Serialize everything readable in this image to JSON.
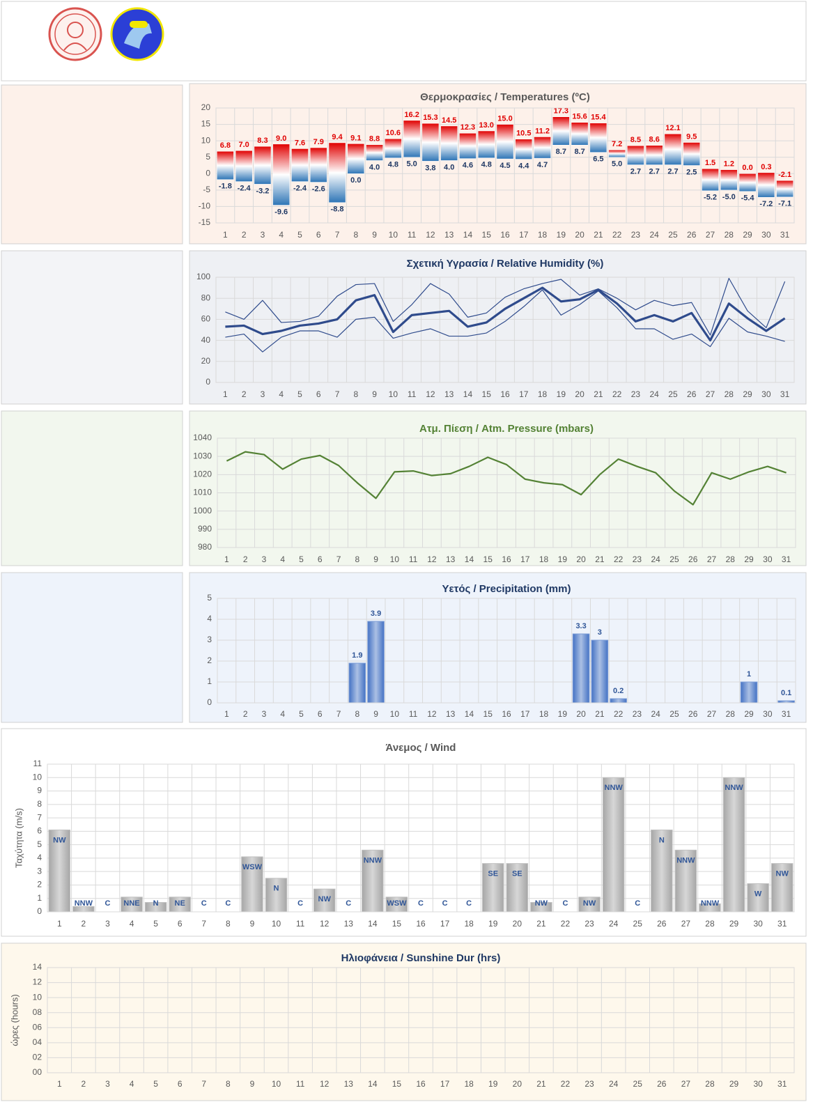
{
  "chart_data": [
    {
      "type": "range_bar",
      "title": "Θερμοκρασίες / Temperatures (ºC)",
      "title_color": "#595959",
      "categories": [
        1,
        2,
        3,
        4,
        5,
        6,
        7,
        8,
        9,
        10,
        11,
        12,
        13,
        14,
        15,
        16,
        17,
        18,
        19,
        20,
        21,
        22,
        23,
        24,
        25,
        26,
        27,
        28,
        29,
        30,
        31
      ],
      "series": [
        {
          "color": "#e00000",
          "values": [
            6.8,
            7.0,
            8.3,
            9.0,
            7.6,
            7.9,
            9.4,
            9.1,
            8.8,
            10.6,
            16.2,
            15.3,
            14.5,
            12.3,
            13.0,
            15.0,
            10.5,
            11.2,
            17.3,
            15.6,
            15.4,
            7.2,
            8.5,
            8.6,
            12.1,
            9.5,
            1.5,
            1.2,
            0.0,
            0.3,
            -2.1
          ],
          "value_labels": [
            "6.8",
            "7.0",
            "8.3",
            "9.0",
            "7.6",
            "7.9",
            "9.4",
            "9.1",
            "8.8",
            "10.6",
            "16.2",
            "15.3",
            "14.5",
            "12.3",
            "13.0",
            "15.0",
            "10.5",
            "11.2",
            "17.3",
            "15.6",
            "15.4",
            "7.2",
            "8.5",
            "8.6",
            "12.1",
            "9.5",
            "1.5",
            "1.2",
            "0.0",
            "0.3",
            "-2.1"
          ]
        },
        {
          "color": "#2e75b6",
          "values": [
            -1.8,
            -2.4,
            -3.2,
            -9.6,
            -2.4,
            -2.6,
            -8.8,
            0.0,
            4.0,
            4.8,
            5.0,
            3.8,
            4.0,
            4.6,
            4.8,
            4.5,
            4.4,
            4.7,
            8.7,
            8.7,
            6.5,
            5.0,
            2.7,
            2.7,
            2.7,
            2.5,
            -5.2,
            -5.0,
            -5.4,
            -7.2,
            -7.1
          ],
          "value_labels": [
            "-1.8",
            "-2.4",
            "-3.2",
            "-9.6",
            "-2.4",
            "-2.6",
            "-8.8",
            "0.0",
            "4.0",
            "4.8",
            "5.0",
            "3.8",
            "4.0",
            "4.6",
            "4.8",
            "4.5",
            "4.4",
            "4.7",
            "8.7",
            "8.7",
            "6.5",
            "5.0",
            "2.7",
            "2.7",
            "2.7",
            "2.5",
            "-5.2",
            "-5.0",
            "-5.4",
            "-7.2",
            "-7.1"
          ]
        }
      ],
      "ylim": [
        -15,
        20
      ],
      "yticks": [
        -15,
        -10,
        -5,
        0,
        5,
        10,
        15,
        20
      ],
      "grid": true
    },
    {
      "type": "line",
      "title": "Σχετική Υγρασία / Relative Humidity (%)",
      "title_color": "#1f3864",
      "categories": [
        1,
        2,
        3,
        4,
        5,
        6,
        7,
        8,
        9,
        10,
        11,
        12,
        13,
        14,
        15,
        16,
        17,
        18,
        19,
        20,
        21,
        22,
        23,
        24,
        25,
        26,
        27,
        28,
        29,
        30,
        31
      ],
      "series": [
        {
          "color": "#2f4b8c",
          "linewidth": 1.2,
          "values": [
            67,
            60,
            78,
            57,
            58,
            63,
            82,
            93,
            94,
            58,
            74,
            94,
            84,
            62,
            66,
            81,
            89,
            94,
            98,
            83,
            89,
            80,
            69,
            78,
            73,
            76,
            45,
            99,
            68,
            52,
            96
          ]
        },
        {
          "color": "#2f4b8c",
          "linewidth": 3.2,
          "values": [
            53,
            54,
            46,
            49,
            54,
            56,
            60,
            78,
            83,
            48,
            64,
            66,
            68,
            53,
            57,
            70,
            80,
            90,
            77,
            79,
            88,
            75,
            58,
            64,
            58,
            66,
            40,
            75,
            61,
            49,
            61
          ]
        },
        {
          "color": "#2f4b8c",
          "linewidth": 1.2,
          "values": [
            43,
            46,
            29,
            43,
            49,
            49,
            43,
            60,
            62,
            42,
            47,
            51,
            44,
            44,
            47,
            58,
            72,
            88,
            64,
            74,
            87,
            71,
            51,
            51,
            41,
            46,
            34,
            61,
            48,
            44,
            39
          ]
        }
      ],
      "ylim": [
        0,
        100
      ],
      "yticks": [
        0,
        20,
        40,
        60,
        80,
        100
      ],
      "grid": true
    },
    {
      "type": "line",
      "title": "Ατμ. Πίεση / Atm. Pressure (mbars)",
      "title_color": "#548235",
      "categories": [
        1,
        2,
        3,
        4,
        5,
        6,
        7,
        8,
        9,
        10,
        11,
        12,
        13,
        14,
        15,
        16,
        17,
        18,
        19,
        20,
        21,
        22,
        23,
        24,
        25,
        26,
        27,
        28,
        29,
        30,
        31
      ],
      "series": [
        {
          "color": "#548235",
          "linewidth": 2.2,
          "values": [
            1027.5,
            1032.5,
            1031,
            1023,
            1028.5,
            1030.5,
            1025,
            1015.5,
            1007,
            1021.5,
            1022,
            1019.5,
            1020.5,
            1024.5,
            1029.5,
            1025.5,
            1017.5,
            1015.5,
            1014.5,
            1009,
            1020,
            1028.5,
            1024.5,
            1021,
            1011,
            1003.5,
            1021,
            1017.5,
            1021.5,
            1024.5,
            1021
          ]
        }
      ],
      "ylim": [
        980,
        1040
      ],
      "yticks": [
        980,
        990,
        1000,
        1010,
        1020,
        1030,
        1040
      ],
      "grid": true
    },
    {
      "type": "bar",
      "title": "Υετός / Precipitation (mm)",
      "title_color": "#1f3864",
      "categories": [
        1,
        2,
        3,
        4,
        5,
        6,
        7,
        8,
        9,
        10,
        11,
        12,
        13,
        14,
        15,
        16,
        17,
        18,
        19,
        20,
        21,
        22,
        23,
        24,
        25,
        26,
        27,
        28,
        29,
        30,
        31
      ],
      "series": [
        {
          "color": "#4472c4",
          "values": [
            null,
            null,
            null,
            null,
            null,
            null,
            null,
            1.9,
            3.9,
            null,
            null,
            null,
            null,
            null,
            null,
            null,
            null,
            null,
            null,
            3.3,
            3,
            0.2,
            null,
            null,
            null,
            null,
            null,
            null,
            1,
            null,
            0.1
          ]
        }
      ],
      "data_labels": true,
      "ylim": [
        0,
        5
      ],
      "yticks": [
        0,
        1,
        2,
        3,
        4,
        5
      ],
      "grid": true
    },
    {
      "type": "bar",
      "title": "Άνεμος / Wind",
      "title_color": "#595959",
      "ylabel": "Ταχύτητα (m/s)",
      "categories": [
        1,
        2,
        3,
        4,
        5,
        6,
        7,
        8,
        9,
        10,
        11,
        12,
        13,
        14,
        15,
        16,
        17,
        18,
        19,
        20,
        21,
        22,
        23,
        24,
        25,
        26,
        27,
        28,
        29,
        30,
        31
      ],
      "series": [
        {
          "color": "#a6a6a6",
          "values": [
            6.1,
            0.4,
            0,
            1.1,
            0.7,
            1.1,
            0,
            0,
            4.1,
            2.5,
            0,
            1.7,
            0,
            4.6,
            1.1,
            0,
            0,
            0,
            3.6,
            3.6,
            0.7,
            0,
            1.1,
            10,
            0,
            6.1,
            4.6,
            0.6,
            10,
            2.1,
            3.6
          ]
        }
      ],
      "directions": [
        "NW",
        "NNW",
        "C",
        "NNE",
        "N",
        "NE",
        "C",
        "C",
        "WSW",
        "N",
        "C",
        "NW",
        "C",
        "NNW",
        "WSW",
        "C",
        "C",
        "C",
        "SE",
        "SE",
        "NW",
        "C",
        "NW",
        "NNW",
        "C",
        "N",
        "NNW",
        "NNW",
        "NNW",
        "W",
        "NW"
      ],
      "ylim": [
        0,
        11
      ],
      "yticks": [
        0,
        1,
        2,
        3,
        4,
        5,
        6,
        7,
        8,
        9,
        10,
        11
      ],
      "grid": true
    },
    {
      "type": "bar",
      "title": "Ηλιοφάνεια / Sunshine Dur (hrs)",
      "title_color": "#1f3864",
      "ylabel": "ώρες (hours)",
      "categories": [
        1,
        2,
        3,
        4,
        5,
        6,
        7,
        8,
        9,
        10,
        11,
        12,
        13,
        14,
        15,
        16,
        17,
        18,
        19,
        20,
        21,
        22,
        23,
        24,
        25,
        26,
        27,
        28,
        29,
        30,
        31
      ],
      "ylim": [
        0,
        14
      ],
      "yticks": [
        {
          "value": 0,
          "label": "00"
        },
        {
          "value": 2,
          "label": "02"
        },
        {
          "value": 4,
          "label": "04"
        },
        {
          "value": 6,
          "label": "06"
        },
        {
          "value": 8,
          "label": "08"
        },
        {
          "value": 10,
          "label": "10"
        },
        {
          "value": 12,
          "label": "12"
        },
        {
          "value": 14,
          "label": "14"
        }
      ],
      "grid": true
    }
  ]
}
